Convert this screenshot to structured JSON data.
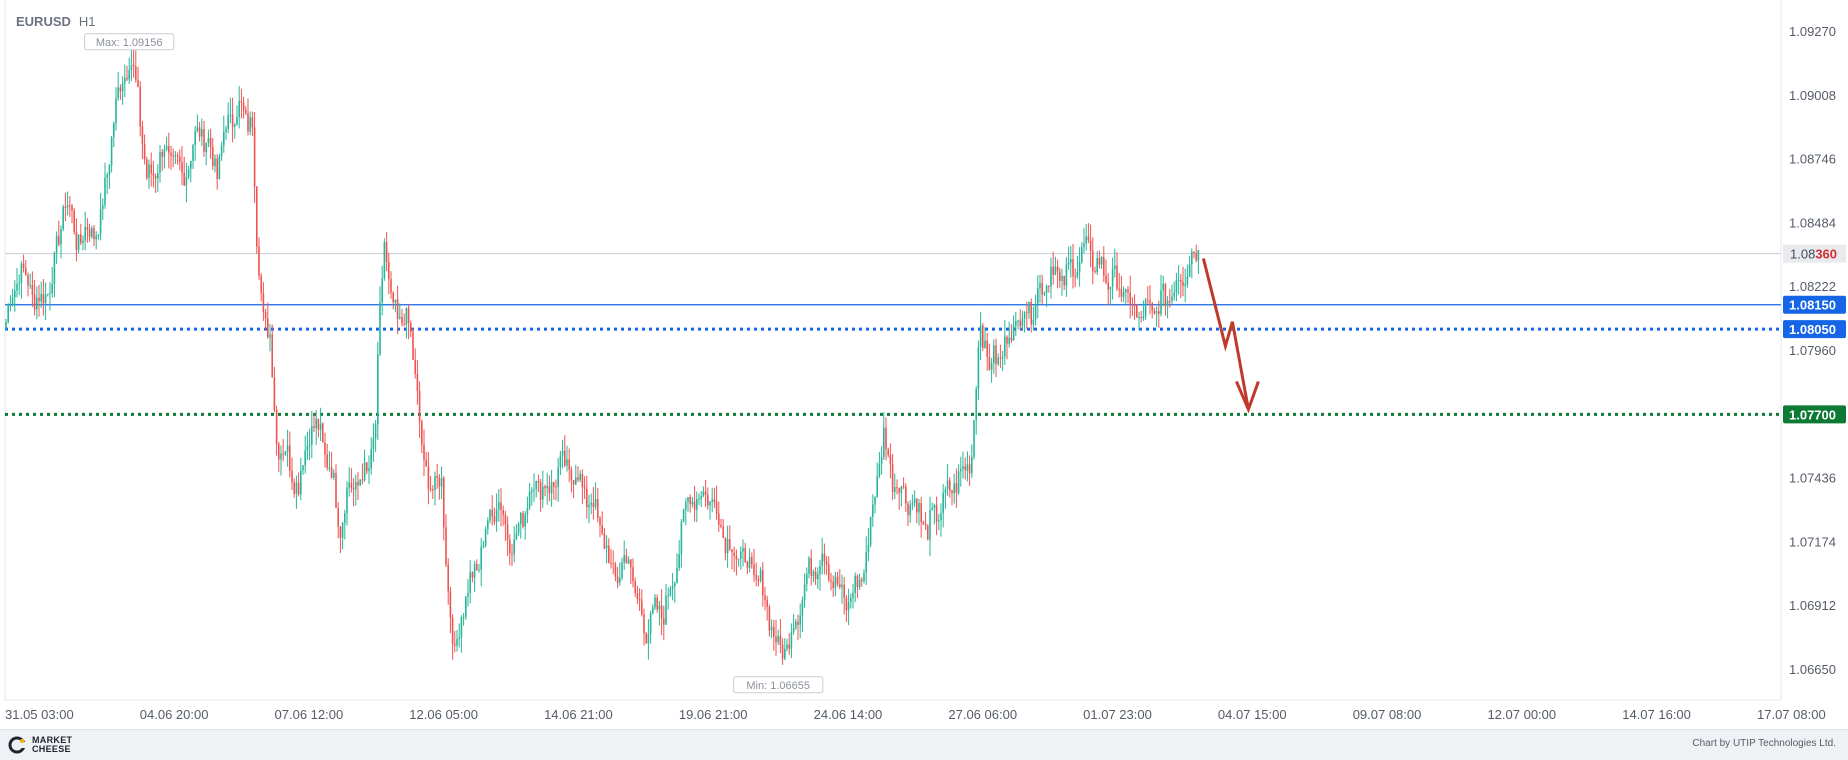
{
  "header": {
    "symbol": "EURUSD",
    "timeframe": "H1"
  },
  "colors": {
    "up": "#26b59a",
    "down": "#ef5350",
    "blue_level": "#1565e6",
    "green_level": "#0c7a34",
    "current_price": "#d32f2f",
    "arrow": "#c0392b"
  },
  "footer": {
    "logo_line1": "MARKET",
    "logo_line2": "CHEESE",
    "credit": "Chart by UTIP Technologies Ltd."
  },
  "chart_data": {
    "type": "candlestick",
    "symbol": "EURUSD",
    "timeframe": "H1",
    "ylim": [
      1.0652,
      1.0933
    ],
    "y_ticks": [
      "1.09270",
      "1.09008",
      "1.08746",
      "1.08484",
      "1.08222",
      "1.07960",
      "1.07436",
      "1.07174",
      "1.06912",
      "1.06650"
    ],
    "x_ticks": [
      "31.05 03:00",
      "04.06 20:00",
      "07.06 12:00",
      "12.06 05:00",
      "14.06 21:00",
      "19.06 21:00",
      "24.06 14:00",
      "27.06 06:00",
      "01.07 23:00",
      "04.07 15:00",
      "09.07 08:00",
      "12.07 00:00",
      "14.07 16:00",
      "17.07 08:00"
    ],
    "max_label": "Max: 1.09156",
    "min_label": "Min: 1.06655",
    "max_value": 1.09156,
    "min_value": 1.06655,
    "current_price": {
      "value": 1.0836,
      "label_main": "1.08",
      "label_highlight": "360"
    },
    "levels": [
      {
        "value": 1.0815,
        "label": "1.08150",
        "style": "solid",
        "color": "#1565e6"
      },
      {
        "value": 1.0805,
        "label": "1.08050",
        "style": "dotted",
        "color": "#1565e6"
      },
      {
        "value": 1.077,
        "label": "1.07700",
        "style": "dotted",
        "color": "#0c7a34"
      }
    ],
    "path_anchors": [
      [
        0,
        1.0808
      ],
      [
        6,
        1.083
      ],
      [
        11,
        1.0822
      ],
      [
        16,
        1.0815
      ],
      [
        22,
        1.083
      ],
      [
        27,
        1.086
      ],
      [
        32,
        1.0842
      ],
      [
        38,
        1.0845
      ],
      [
        43,
        1.0848
      ],
      [
        48,
        1.0885
      ],
      [
        53,
        1.091
      ],
      [
        56,
        1.0915
      ],
      [
        60,
        1.0902
      ],
      [
        64,
        1.0865
      ],
      [
        68,
        1.0872
      ],
      [
        72,
        1.0878
      ],
      [
        76,
        1.0874
      ],
      [
        80,
        1.0868
      ],
      [
        84,
        1.0876
      ],
      [
        88,
        1.0888
      ],
      [
        92,
        1.088
      ],
      [
        96,
        1.087
      ],
      [
        100,
        1.0888
      ],
      [
        104,
        1.0895
      ],
      [
        108,
        1.0893
      ],
      [
        112,
        1.089
      ],
      [
        114,
        1.084
      ],
      [
        117,
        1.0812
      ],
      [
        120,
        1.08
      ],
      [
        123,
        1.076
      ],
      [
        128,
        1.0752
      ],
      [
        133,
        1.074
      ],
      [
        138,
        1.0765
      ],
      [
        143,
        1.0762
      ],
      [
        148,
        1.0745
      ],
      [
        152,
        1.0725
      ],
      [
        156,
        1.074
      ],
      [
        160,
        1.0742
      ],
      [
        164,
        1.0745
      ],
      [
        168,
        1.0765
      ],
      [
        170,
        1.081
      ],
      [
        172,
        1.0843
      ],
      [
        175,
        1.0815
      ],
      [
        178,
        1.0808
      ],
      [
        181,
        1.0812
      ],
      [
        184,
        1.08
      ],
      [
        187,
        1.078
      ],
      [
        190,
        1.0745
      ],
      [
        194,
        1.0742
      ],
      [
        198,
        1.074
      ],
      [
        201,
        1.07
      ],
      [
        204,
        1.0668
      ],
      [
        207,
        1.069
      ],
      [
        211,
        1.07
      ],
      [
        215,
        1.071
      ],
      [
        219,
        1.0725
      ],
      [
        223,
        1.0735
      ],
      [
        227,
        1.0725
      ],
      [
        231,
        1.0715
      ],
      [
        235,
        1.073
      ],
      [
        239,
        1.074
      ],
      [
        243,
        1.0742
      ],
      [
        247,
        1.0738
      ],
      [
        251,
        1.0748
      ],
      [
        255,
        1.0748
      ],
      [
        259,
        1.0745
      ],
      [
        263,
        1.0738
      ],
      [
        267,
        1.0732
      ],
      [
        271,
        1.0722
      ],
      [
        275,
        1.0705
      ],
      [
        279,
        1.0705
      ],
      [
        283,
        1.0712
      ],
      [
        287,
        1.0692
      ],
      [
        291,
        1.0682
      ],
      [
        295,
        1.0688
      ],
      [
        299,
        1.069
      ],
      [
        303,
        1.07
      ],
      [
        307,
        1.0722
      ],
      [
        311,
        1.0738
      ],
      [
        315,
        1.0735
      ],
      [
        319,
        1.0738
      ],
      [
        323,
        1.073
      ],
      [
        327,
        1.072
      ],
      [
        331,
        1.0712
      ],
      [
        335,
        1.0712
      ],
      [
        339,
        1.0705
      ],
      [
        343,
        1.07
      ],
      [
        347,
        1.0688
      ],
      [
        351,
        1.0672
      ],
      [
        355,
        1.0676
      ],
      [
        359,
        1.0685
      ],
      [
        363,
        1.07
      ],
      [
        367,
        1.0708
      ],
      [
        371,
        1.0712
      ],
      [
        375,
        1.0705
      ],
      [
        379,
        1.0696
      ],
      [
        383,
        1.0693
      ],
      [
        387,
        1.07
      ],
      [
        391,
        1.071
      ],
      [
        395,
        1.074
      ],
      [
        399,
        1.076
      ],
      [
        403,
        1.0745
      ],
      [
        407,
        1.0738
      ],
      [
        411,
        1.0735
      ],
      [
        415,
        1.073
      ],
      [
        419,
        1.0722
      ],
      [
        423,
        1.073
      ],
      [
        427,
        1.0735
      ],
      [
        431,
        1.0742
      ],
      [
        435,
        1.0745
      ],
      [
        439,
        1.0755
      ],
      [
        443,
        1.0808
      ],
      [
        447,
        1.079
      ],
      [
        451,
        1.0793
      ],
      [
        455,
        1.08
      ],
      [
        459,
        1.0808
      ],
      [
        463,
        1.0812
      ],
      [
        467,
        1.0815
      ],
      [
        471,
        1.0822
      ],
      [
        475,
        1.083
      ],
      [
        479,
        1.0825
      ],
      [
        483,
        1.0828
      ],
      [
        487,
        1.0833
      ],
      [
        491,
        1.0838
      ],
      [
        495,
        1.0833
      ],
      [
        499,
        1.0828
      ],
      [
        503,
        1.0825
      ],
      [
        507,
        1.0822
      ],
      [
        511,
        1.0815
      ],
      [
        515,
        1.081
      ],
      [
        519,
        1.0812
      ],
      [
        523,
        1.0813
      ],
      [
        527,
        1.0818
      ],
      [
        531,
        1.0822
      ],
      [
        535,
        1.0828
      ],
      [
        539,
        1.0834
      ],
      [
        542,
        1.0838
      ]
    ],
    "forecast_arrow": [
      [
        1.0834,
        "current"
      ],
      [
        1.0798,
        "dip"
      ],
      [
        1.0808,
        "bounce"
      ],
      [
        1.0772,
        "target"
      ]
    ]
  }
}
